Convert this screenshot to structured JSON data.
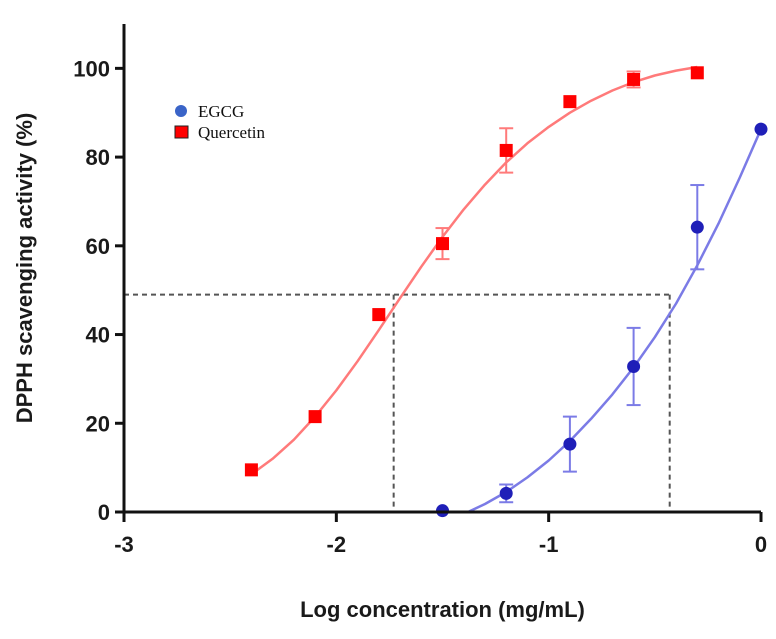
{
  "chart_data": {
    "type": "scatter",
    "title": "",
    "xlabel": "Log concentration (mg/mL)",
    "ylabel": "DPPH scavenging activity (%)",
    "xlim": [
      -3,
      0
    ],
    "ylim": [
      0,
      110
    ],
    "x_ticks": [
      -3,
      -2,
      -1,
      0
    ],
    "x_tick_labels": [
      "-3",
      "-2",
      "-1",
      "0"
    ],
    "y_ticks": [
      0,
      20,
      40,
      60,
      80,
      100
    ],
    "y_tick_labels": [
      "0",
      "20",
      "40",
      "60",
      "80",
      "100"
    ],
    "grid": false,
    "legend_position": "top-left",
    "series": [
      {
        "name": "EGCG",
        "marker": "circle",
        "color": "#1f1fb8",
        "fit_color": "#7b7be6",
        "x": [
          -1.5,
          -1.2,
          -0.9,
          -0.6,
          -0.3,
          0.0
        ],
        "y": [
          0.3,
          4.2,
          15.3,
          32.8,
          64.2,
          86.3
        ],
        "error": [
          0.0,
          2.0,
          6.2,
          8.7,
          9.5,
          0.0
        ],
        "fit_x": [
          -1.38,
          -1.3,
          -1.2,
          -1.1,
          -1.0,
          -0.9,
          -0.8,
          -0.7,
          -0.6,
          -0.5,
          -0.4,
          -0.3,
          -0.2,
          -0.1,
          0.0
        ],
        "fit_y": [
          0.0,
          1.8,
          4.5,
          7.8,
          11.6,
          16.0,
          21.0,
          26.5,
          32.6,
          39.4,
          47.0,
          55.6,
          65.0,
          75.4,
          86.3
        ]
      },
      {
        "name": "Quercetin",
        "marker": "square",
        "color": "#ff0000",
        "fit_color": "#ff7a7a",
        "x": [
          -2.4,
          -2.1,
          -1.8,
          -1.5,
          -1.2,
          -0.9,
          -0.6,
          -0.3
        ],
        "y": [
          9.5,
          21.5,
          44.5,
          60.5,
          81.5,
          92.5,
          97.5,
          99.0
        ],
        "error": [
          0.0,
          0.0,
          0.0,
          3.5,
          5.0,
          0.0,
          1.8,
          0.0
        ],
        "fit_x": [
          -2.4,
          -2.3,
          -2.2,
          -2.1,
          -2.0,
          -1.9,
          -1.8,
          -1.7,
          -1.6,
          -1.5,
          -1.4,
          -1.3,
          -1.2,
          -1.1,
          -1.0,
          -0.9,
          -0.8,
          -0.7,
          -0.6,
          -0.5,
          -0.4,
          -0.3
        ],
        "fit_y": [
          8.5,
          12.0,
          16.3,
          21.5,
          27.4,
          34.0,
          41.0,
          48.2,
          55.3,
          62.0,
          68.2,
          73.8,
          78.8,
          83.1,
          86.8,
          90.0,
          92.7,
          95.0,
          96.9,
          98.4,
          99.5,
          100.3
        ]
      }
    ],
    "reference_lines": {
      "y": 49,
      "x_values": [
        -1.73,
        -0.43
      ],
      "style": "dashed",
      "color": "#555555"
    }
  }
}
